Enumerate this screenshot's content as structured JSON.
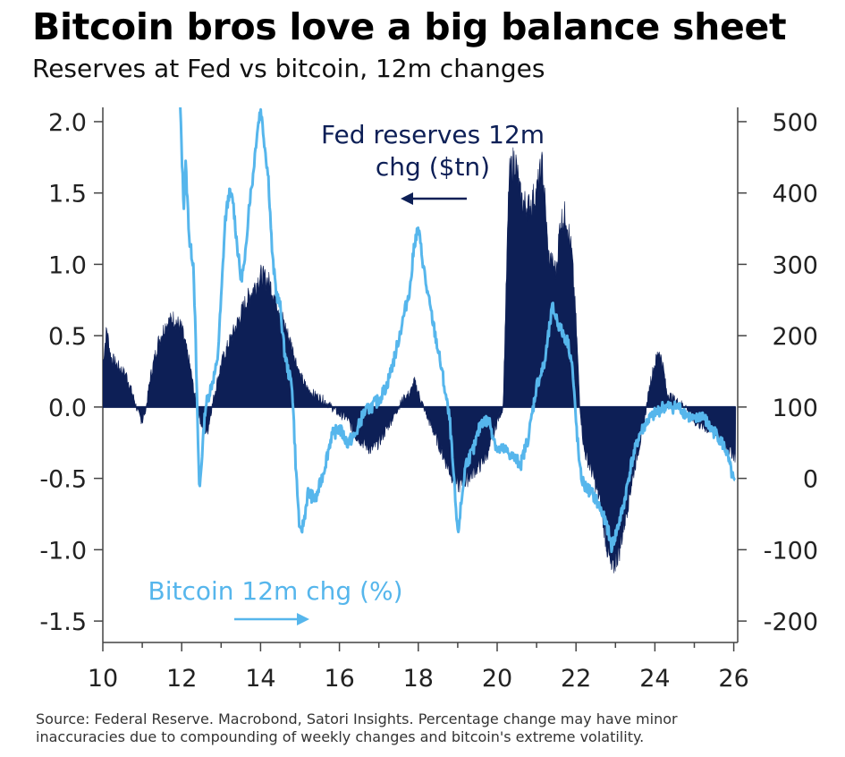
{
  "title": "Bitcoin bros love a big balance sheet",
  "subtitle": "Reserves at Fed vs bitcoin, 12m changes",
  "source_line1": "Source: Federal Reserve. Macrobond, Satori Insights. Percentage change may have minor",
  "source_line2": "inaccuracies due to compounding of weekly changes and bitcoin's extreme volatility.",
  "colors": {
    "fed": "#0d1f56",
    "bitcoin": "#56b6ec",
    "axis": "#444444"
  },
  "chart_data": {
    "type": "area",
    "x_ticks": [
      "10",
      "12",
      "14",
      "16",
      "18",
      "20",
      "22",
      "24",
      "26"
    ],
    "xlim": [
      10,
      26.1
    ],
    "y_left": {
      "ticks": [
        "2.0",
        "1.5",
        "1.0",
        "0.5",
        "0.0",
        "-0.5",
        "-1.0",
        "-1.5"
      ],
      "range": [
        -1.65,
        2.1
      ]
    },
    "y_right": {
      "ticks": [
        "500",
        "400",
        "300",
        "200",
        "100",
        "0",
        "-100",
        "-200"
      ],
      "range": [
        -230,
        520
      ]
    },
    "annotations": {
      "fed_line1": "Fed reserves 12m",
      "fed_line2": "chg ($tn)",
      "bitcoin": "Bitcoin 12m chg (%)"
    },
    "series": [
      {
        "name": "Fed reserves 12m chg ($tn)",
        "axis": "left",
        "style": "area",
        "points": [
          [
            10.0,
            0.3
          ],
          [
            10.1,
            0.55
          ],
          [
            10.2,
            0.35
          ],
          [
            10.4,
            0.28
          ],
          [
            10.6,
            0.22
          ],
          [
            10.8,
            0.05
          ],
          [
            10.9,
            -0.05
          ],
          [
            11.0,
            -0.1
          ],
          [
            11.1,
            0.0
          ],
          [
            11.2,
            0.2
          ],
          [
            11.4,
            0.45
          ],
          [
            11.6,
            0.58
          ],
          [
            11.8,
            0.62
          ],
          [
            12.0,
            0.55
          ],
          [
            12.2,
            0.3
          ],
          [
            12.35,
            0.05
          ],
          [
            12.5,
            -0.12
          ],
          [
            12.65,
            -0.18
          ],
          [
            12.8,
            0.05
          ],
          [
            13.0,
            0.3
          ],
          [
            13.2,
            0.45
          ],
          [
            13.4,
            0.58
          ],
          [
            13.6,
            0.72
          ],
          [
            13.8,
            0.82
          ],
          [
            14.0,
            0.92
          ],
          [
            14.2,
            0.88
          ],
          [
            14.4,
            0.75
          ],
          [
            14.6,
            0.58
          ],
          [
            14.8,
            0.42
          ],
          [
            15.0,
            0.22
          ],
          [
            15.2,
            0.12
          ],
          [
            15.4,
            0.08
          ],
          [
            15.6,
            0.05
          ],
          [
            15.8,
            0.0
          ],
          [
            16.0,
            -0.05
          ],
          [
            16.2,
            -0.08
          ],
          [
            16.4,
            -0.2
          ],
          [
            16.6,
            -0.25
          ],
          [
            16.8,
            -0.3
          ],
          [
            17.0,
            -0.25
          ],
          [
            17.2,
            -0.15
          ],
          [
            17.4,
            -0.05
          ],
          [
            17.6,
            0.05
          ],
          [
            17.8,
            0.1
          ],
          [
            17.9,
            0.18
          ],
          [
            18.0,
            0.1
          ],
          [
            18.2,
            -0.05
          ],
          [
            18.4,
            -0.18
          ],
          [
            18.6,
            -0.32
          ],
          [
            18.8,
            -0.45
          ],
          [
            19.0,
            -0.55
          ],
          [
            19.2,
            -0.52
          ],
          [
            19.4,
            -0.45
          ],
          [
            19.6,
            -0.4
          ],
          [
            19.8,
            -0.3
          ],
          [
            20.0,
            -0.1
          ],
          [
            20.15,
            0.0
          ],
          [
            20.3,
            1.6
          ],
          [
            20.45,
            1.75
          ],
          [
            20.6,
            1.45
          ],
          [
            20.8,
            1.4
          ],
          [
            21.0,
            1.5
          ],
          [
            21.15,
            1.7
          ],
          [
            21.3,
            1.05
          ],
          [
            21.5,
            0.95
          ],
          [
            21.6,
            1.3
          ],
          [
            21.75,
            1.35
          ],
          [
            21.9,
            1.05
          ],
          [
            22.0,
            0.6
          ],
          [
            22.1,
            0.0
          ],
          [
            22.2,
            -0.3
          ],
          [
            22.4,
            -0.45
          ],
          [
            22.6,
            -0.65
          ],
          [
            22.8,
            -1.0
          ],
          [
            22.9,
            -1.15
          ],
          [
            23.1,
            -1.0
          ],
          [
            23.3,
            -0.7
          ],
          [
            23.5,
            -0.4
          ],
          [
            23.7,
            -0.15
          ],
          [
            23.9,
            0.2
          ],
          [
            24.1,
            0.4
          ],
          [
            24.2,
            0.3
          ],
          [
            24.3,
            0.1
          ],
          [
            24.5,
            0.05
          ],
          [
            24.8,
            0.0
          ],
          [
            25.0,
            -0.1
          ],
          [
            25.3,
            -0.15
          ],
          [
            25.6,
            -0.2
          ],
          [
            25.9,
            -0.3
          ],
          [
            26.05,
            -0.35
          ]
        ]
      },
      {
        "name": "Bitcoin 12m chg (%)",
        "axis": "right",
        "style": "line",
        "points": [
          [
            11.95,
            540
          ],
          [
            12.0,
            460
          ],
          [
            12.05,
            380
          ],
          [
            12.1,
            440
          ],
          [
            12.2,
            330
          ],
          [
            12.3,
            300
          ],
          [
            12.35,
            200
          ],
          [
            12.4,
            80
          ],
          [
            12.45,
            -20
          ],
          [
            12.5,
            20
          ],
          [
            12.6,
            100
          ],
          [
            12.7,
            120
          ],
          [
            12.8,
            140
          ],
          [
            12.9,
            160
          ],
          [
            13.0,
            250
          ],
          [
            13.1,
            360
          ],
          [
            13.2,
            400
          ],
          [
            13.3,
            390
          ],
          [
            13.4,
            330
          ],
          [
            13.5,
            280
          ],
          [
            13.6,
            300
          ],
          [
            13.7,
            380
          ],
          [
            13.8,
            420
          ],
          [
            13.9,
            480
          ],
          [
            14.0,
            520
          ],
          [
            14.1,
            470
          ],
          [
            14.2,
            420
          ],
          [
            14.3,
            310
          ],
          [
            14.4,
            260
          ],
          [
            14.5,
            240
          ],
          [
            14.6,
            180
          ],
          [
            14.7,
            150
          ],
          [
            14.8,
            130
          ],
          [
            14.9,
            10
          ],
          [
            15.0,
            -80
          ],
          [
            15.1,
            -60
          ],
          [
            15.2,
            -20
          ],
          [
            15.4,
            -30
          ],
          [
            15.6,
            10
          ],
          [
            15.8,
            60
          ],
          [
            16.0,
            70
          ],
          [
            16.2,
            50
          ],
          [
            16.4,
            60
          ],
          [
            16.6,
            90
          ],
          [
            16.8,
            100
          ],
          [
            17.0,
            110
          ],
          [
            17.2,
            130
          ],
          [
            17.4,
            170
          ],
          [
            17.6,
            220
          ],
          [
            17.8,
            270
          ],
          [
            17.9,
            330
          ],
          [
            18.0,
            350
          ],
          [
            18.2,
            270
          ],
          [
            18.4,
            210
          ],
          [
            18.6,
            150
          ],
          [
            18.8,
            80
          ],
          [
            19.0,
            -80
          ],
          [
            19.1,
            -30
          ],
          [
            19.2,
            20
          ],
          [
            19.4,
            40
          ],
          [
            19.6,
            80
          ],
          [
            19.8,
            80
          ],
          [
            20.0,
            40
          ],
          [
            20.2,
            40
          ],
          [
            20.4,
            30
          ],
          [
            20.6,
            20
          ],
          [
            20.8,
            60
          ],
          [
            21.0,
            130
          ],
          [
            21.2,
            160
          ],
          [
            21.3,
            200
          ],
          [
            21.4,
            240
          ],
          [
            21.6,
            210
          ],
          [
            21.8,
            190
          ],
          [
            21.9,
            160
          ],
          [
            22.0,
            80
          ],
          [
            22.1,
            10
          ],
          [
            22.2,
            -10
          ],
          [
            22.4,
            -20
          ],
          [
            22.6,
            -40
          ],
          [
            22.8,
            -70
          ],
          [
            22.9,
            -95
          ],
          [
            23.0,
            -80
          ],
          [
            23.2,
            -40
          ],
          [
            23.4,
            20
          ],
          [
            23.6,
            60
          ],
          [
            23.8,
            80
          ],
          [
            24.0,
            90
          ],
          [
            24.2,
            100
          ],
          [
            24.4,
            100
          ],
          [
            24.6,
            100
          ],
          [
            24.8,
            90
          ],
          [
            25.0,
            80
          ],
          [
            25.2,
            90
          ],
          [
            25.4,
            70
          ],
          [
            25.6,
            60
          ],
          [
            25.8,
            40
          ],
          [
            26.0,
            -5
          ],
          [
            26.05,
            -10
          ]
        ]
      }
    ]
  }
}
